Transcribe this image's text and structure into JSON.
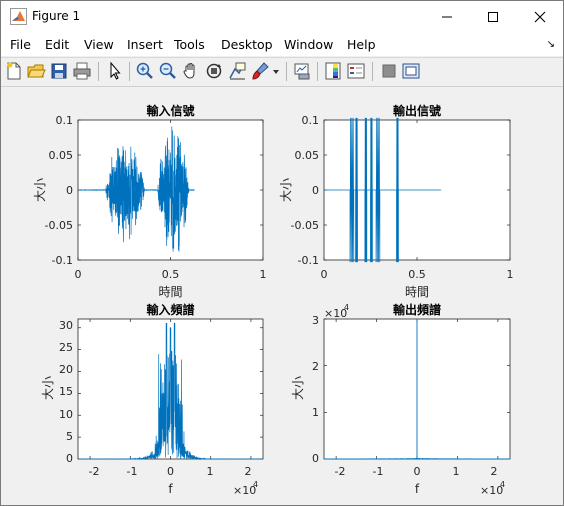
{
  "window": {
    "title": "Figure 1"
  },
  "menu": [
    "File",
    "Edit",
    "View",
    "Insert",
    "Tools",
    "Desktop",
    "Window",
    "Help"
  ],
  "toolbar_icons": [
    "new-figure-icon",
    "open-file-icon",
    "save-icon",
    "print-icon",
    "pointer-icon",
    "zoom-in-icon",
    "zoom-out-icon",
    "pan-hand-icon",
    "rotate-3d-icon",
    "data-cursor-icon",
    "brush-icon",
    "brush-dropdown-icon",
    "link-plot-icon",
    "insert-colorbar-icon",
    "insert-legend-icon",
    "hide-plot-tools-icon",
    "show-plot-tools-icon"
  ],
  "colors": {
    "plot_line": "#0072bd",
    "axis": "#262626",
    "figure_bg": "#f0f0f0"
  },
  "plots": {
    "p1": {
      "title": "輸入信號",
      "xlabel": "時間",
      "ylabel": "大小",
      "xticks": [
        "0",
        "0.5",
        "1"
      ],
      "yticks": [
        "0.1",
        "0.05",
        "0",
        "-0.05",
        "-0.1"
      ]
    },
    "p2": {
      "title": "輸出信號",
      "xlabel": "時間",
      "ylabel": "大小",
      "xticks": [
        "0",
        "0.5",
        "1"
      ],
      "yticks": [
        "0.1",
        "0.05",
        "0",
        "-0.05",
        "-0.1"
      ]
    },
    "p3": {
      "title": "輸入頻譜",
      "xlabel": "f",
      "ylabel": "大小",
      "xticks": [
        "-2",
        "-1",
        "0",
        "1",
        "2"
      ],
      "yticks": [
        "30",
        "25",
        "20",
        "15",
        "10",
        "5",
        "0"
      ],
      "xexp_base": "×10",
      "xexp_pow": "4"
    },
    "p4": {
      "title": "輸出頻譜",
      "xlabel": "f",
      "ylabel": "大小",
      "xticks": [
        "-2",
        "-1",
        "0",
        "1",
        "2"
      ],
      "yticks": [
        "3",
        "2",
        "1",
        "0"
      ],
      "xexp_base": "×10",
      "xexp_pow": "4",
      "yexp_base": "×10",
      "yexp_pow": "4"
    }
  },
  "chart_data": [
    {
      "type": "line",
      "title": "輸入信號",
      "xlabel": "時間",
      "ylabel": "大小",
      "xlim": [
        0,
        1
      ],
      "ylim": [
        -0.1,
        0.1
      ],
      "bursts": [
        {
          "x_range": [
            0.15,
            0.36
          ],
          "peak_amplitude": 0.08
        },
        {
          "x_range": [
            0.43,
            0.6
          ],
          "peak_amplitude": 0.1
        }
      ]
    },
    {
      "type": "line",
      "title": "輸出信號",
      "xlabel": "時間",
      "ylabel": "大小",
      "xlim": [
        0,
        1
      ],
      "ylim": [
        -0.1,
        0.1
      ],
      "clipped_segments_x": [
        [
          0.14,
          0.16
        ],
        [
          0.17,
          0.18
        ],
        [
          0.22,
          0.23
        ],
        [
          0.25,
          0.26
        ],
        [
          0.28,
          0.3
        ],
        [
          0.39,
          0.4
        ]
      ]
    },
    {
      "type": "line",
      "title": "輸入頻譜",
      "xlabel": "f",
      "ylabel": "大小",
      "xlim": [
        -23000,
        23000
      ],
      "ylim": [
        0,
        32
      ],
      "peaks": [
        {
          "f": -1000,
          "value": 31
        },
        {
          "f": 0,
          "value": 30
        },
        {
          "f": 1000,
          "value": 31
        }
      ]
    },
    {
      "type": "line",
      "title": "輸出頻譜",
      "xlabel": "f",
      "ylabel": "大小",
      "xlim": [
        -23000,
        23000
      ],
      "ylim": [
        0,
        30000
      ],
      "peaks": [
        {
          "f": 0,
          "value": 30000
        }
      ]
    }
  ]
}
